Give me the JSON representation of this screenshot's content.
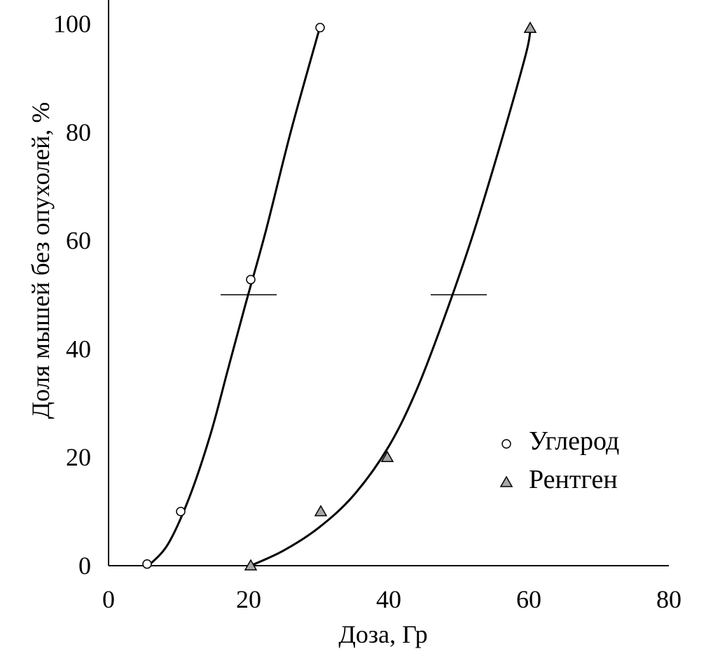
{
  "chart_data": {
    "type": "scatter",
    "title": "",
    "xlabel": "Доза, Гр",
    "ylabel": "Доля мышей без опухолей, %",
    "xlim": [
      0,
      80
    ],
    "ylim": [
      0,
      100
    ],
    "xticks": [
      0,
      20,
      40,
      60,
      80
    ],
    "yticks": [
      0,
      20,
      40,
      60,
      80,
      100
    ],
    "grid": false,
    "legend_position": "bottom-right",
    "series": [
      {
        "name": "Углерод",
        "marker": "circle",
        "marker_color": "#ffffff",
        "points": [
          {
            "x": 5.5,
            "y": 0.3
          },
          {
            "x": 10.3,
            "y": 10
          },
          {
            "x": 20.3,
            "y": 52.8
          },
          {
            "x": 30.2,
            "y": 99.3
          }
        ],
        "fit_curve": [
          {
            "x": 5.8,
            "y": 0.1
          },
          {
            "x": 8.5,
            "y": 4
          },
          {
            "x": 11.5,
            "y": 12.5
          },
          {
            "x": 14.5,
            "y": 24
          },
          {
            "x": 17.0,
            "y": 36
          },
          {
            "x": 19.5,
            "y": 48
          },
          {
            "x": 22.5,
            "y": 62
          },
          {
            "x": 26.0,
            "y": 80
          },
          {
            "x": 30.2,
            "y": 99.5
          }
        ],
        "half_effect_marker": {
          "x_from": 16,
          "x_to": 24,
          "y": 50
        }
      },
      {
        "name": "Рентген",
        "marker": "triangle",
        "marker_color": "#a6a6a6",
        "points": [
          {
            "x": 20.3,
            "y": 0
          },
          {
            "x": 30.3,
            "y": 10
          },
          {
            "x": 39.8,
            "y": 20
          },
          {
            "x": 60.2,
            "y": 99.2
          }
        ],
        "fit_curve": [
          {
            "x": 20.3,
            "y": 0
          },
          {
            "x": 25.0,
            "y": 2.8
          },
          {
            "x": 30.0,
            "y": 7
          },
          {
            "x": 35.0,
            "y": 13
          },
          {
            "x": 40.0,
            "y": 22
          },
          {
            "x": 44.0,
            "y": 32.5
          },
          {
            "x": 48.0,
            "y": 46
          },
          {
            "x": 52.0,
            "y": 61
          },
          {
            "x": 56.0,
            "y": 78
          },
          {
            "x": 59.5,
            "y": 94
          },
          {
            "x": 60.2,
            "y": 98.5
          }
        ],
        "half_effect_marker": {
          "x_from": 46,
          "x_to": 54,
          "y": 50
        }
      }
    ]
  }
}
